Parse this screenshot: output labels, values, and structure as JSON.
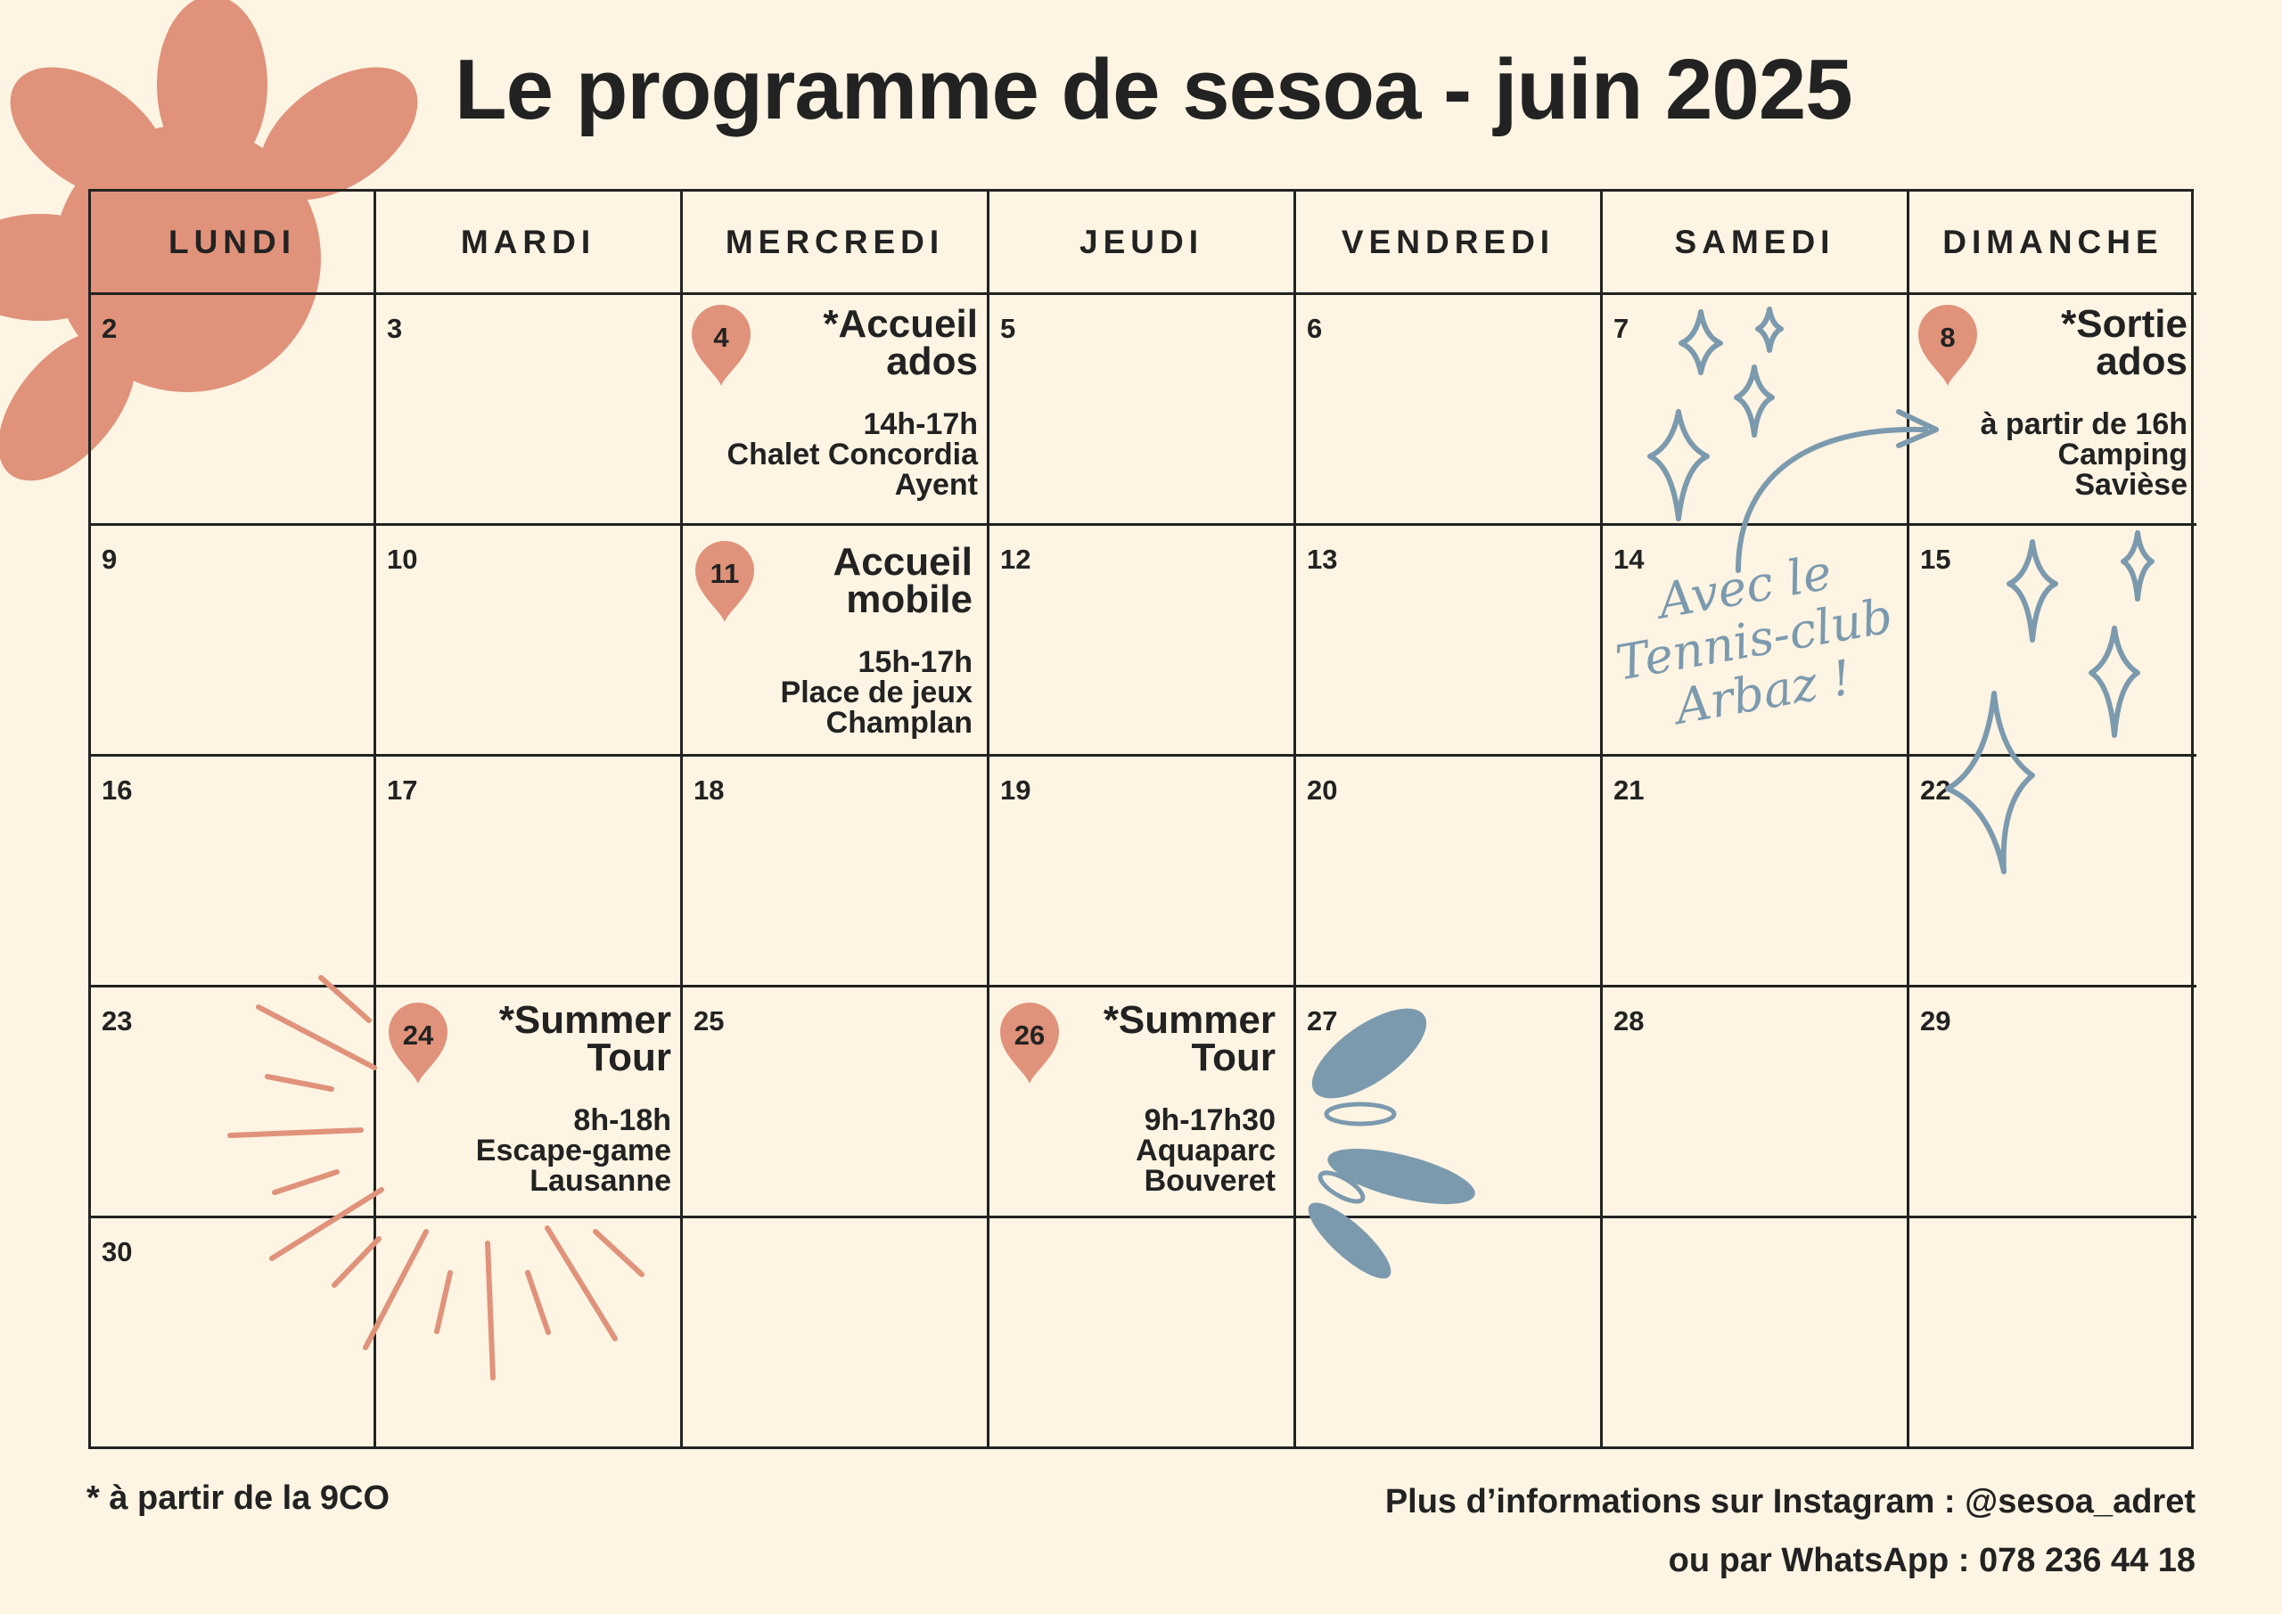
{
  "title": "Le programme de sesoa - juin 2025",
  "colors": {
    "accent": "#e0927a",
    "blue": "#7c9aae",
    "ink": "#222222",
    "background": "#fdf4e3"
  },
  "weekdays": [
    "LUNDI",
    "MARDI",
    "MERCREDI",
    "JEUDI",
    "VENDREDI",
    "SAMEDI",
    "DIMANCHE"
  ],
  "days": {
    "d2": "2",
    "d3": "3",
    "d4": "4",
    "d5": "5",
    "d6": "6",
    "d7": "7",
    "d8": "8",
    "d9": "9",
    "d10": "10",
    "d11": "11",
    "d12": "12",
    "d13": "13",
    "d14": "14",
    "d15": "15",
    "d16": "16",
    "d17": "17",
    "d18": "18",
    "d19": "19",
    "d20": "20",
    "d21": "21",
    "d22": "22",
    "d23": "23",
    "d24": "24",
    "d25": "25",
    "d26": "26",
    "d27": "27",
    "d28": "28",
    "d29": "29",
    "d30": "30"
  },
  "events": {
    "e4": {
      "title": [
        "*Accueil",
        "ados"
      ],
      "details": [
        "14h-17h",
        "Chalet Concordia",
        "Ayent"
      ]
    },
    "e8": {
      "title": [
        "*Sortie",
        "ados"
      ],
      "details": [
        "à partir de 16h",
        "Camping",
        "Savièse"
      ]
    },
    "e11": {
      "title": [
        "Accueil",
        "mobile"
      ],
      "details": [
        "15h-17h",
        "Place de jeux",
        "Champlan"
      ]
    },
    "e24": {
      "title": [
        "*Summer",
        "Tour"
      ],
      "details": [
        "8h-18h",
        "Escape-game",
        "Lausanne"
      ]
    },
    "e26": {
      "title": [
        "*Summer",
        "Tour"
      ],
      "details": [
        "9h-17h30",
        "Aquaparc",
        "Bouveret"
      ]
    }
  },
  "handwritten_note": [
    "Avec le",
    "Tennis-club",
    "Arbaz !"
  ],
  "footnote": "* à partir de la 9CO",
  "contact": {
    "line1": "Plus d’informations sur Instagram : @sesoa_adret",
    "line2": "ou par WhatsApp : 078 236 44 18"
  }
}
